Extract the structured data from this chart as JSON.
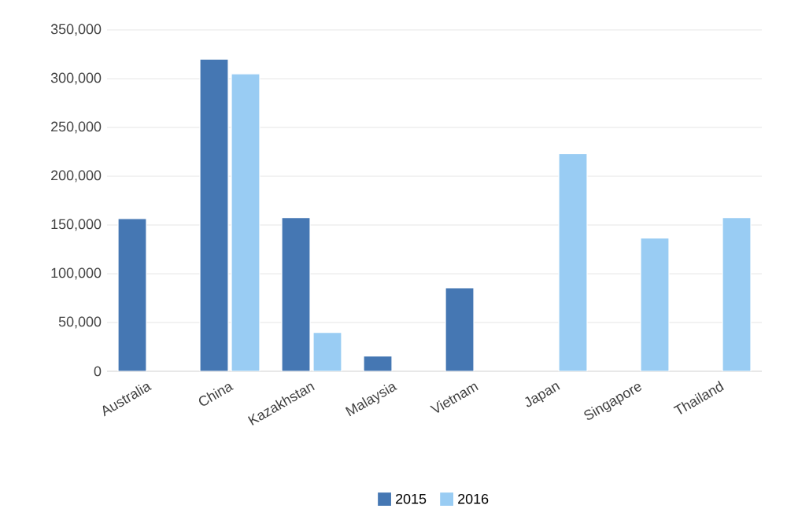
{
  "chart_data": {
    "type": "bar",
    "categories": [
      "Australia",
      "China",
      "Kazakhstan",
      "Malaysia",
      "Vietnam",
      "Japan",
      "Singapore",
      "Thailand"
    ],
    "series": [
      {
        "name": "2015",
        "color": "#4577b3",
        "values": [
          156500,
          320000,
          157500,
          15600,
          85500,
          null,
          null,
          null
        ]
      },
      {
        "name": "2016",
        "color": "#99ccf3",
        "values": [
          null,
          305000,
          39800,
          null,
          null,
          223000,
          136600,
          157500
        ]
      }
    ],
    "ylim": [
      0,
      350000
    ],
    "yticks": [
      {
        "value": 0,
        "label": "0"
      },
      {
        "value": 50000,
        "label": "50,000"
      },
      {
        "value": 100000,
        "label": "100,000"
      },
      {
        "value": 150000,
        "label": "150,000"
      },
      {
        "value": 200000,
        "label": "200,000"
      },
      {
        "value": 250000,
        "label": "250,000"
      },
      {
        "value": 300000,
        "label": "300,000"
      },
      {
        "value": 350000,
        "label": "350,000"
      }
    ],
    "grid": "y",
    "legend": "bottom"
  }
}
